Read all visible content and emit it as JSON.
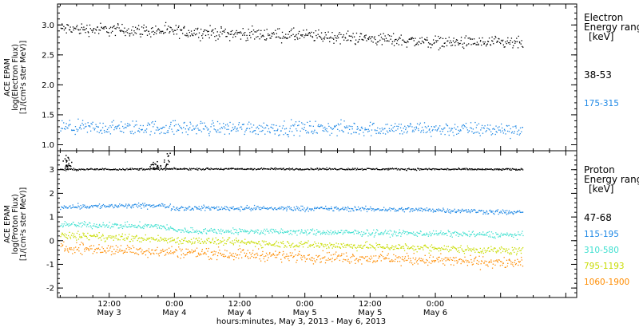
{
  "chart_data": [
    {
      "type": "scatter",
      "panel": "electron",
      "ylabel_lines": [
        "ACE EPAM",
        "log(Electron Flux)",
        "[1/(cm²s ster MeV)]"
      ],
      "ylim": [
        0.9,
        3.35
      ],
      "yticks": [
        1.0,
        1.5,
        2.0,
        2.5,
        3.0
      ],
      "ytick_labels": [
        "1.0",
        "1.5",
        "2.0",
        "2.5",
        "3.0"
      ],
      "legend_title": [
        "Electron",
        "Energy range",
        "[keV]"
      ],
      "series": [
        {
          "name": "38-53",
          "color": "#000000",
          "knots_h": [
            0,
            12,
            24,
            36,
            48,
            60,
            72,
            88
          ],
          "knots_v": [
            2.95,
            2.93,
            2.9,
            2.86,
            2.83,
            2.78,
            2.72,
            2.7
          ],
          "spread": 0.08
        },
        {
          "name": "175-315",
          "color": "#1e88e5",
          "knots_h": [
            0,
            36,
            72,
            88
          ],
          "knots_v": [
            1.29,
            1.29,
            1.27,
            1.26
          ],
          "spread": 0.09
        }
      ]
    },
    {
      "type": "scatter",
      "panel": "proton",
      "ylabel_lines": [
        "ACE EPAM",
        "log(Proton Flux)",
        "[1/(cm²s ster MeV)]"
      ],
      "ylim": [
        -2.4,
        3.8
      ],
      "yticks": [
        -2,
        -1,
        0,
        1,
        2,
        3
      ],
      "ytick_labels": [
        "-2",
        "-1",
        "0",
        "1",
        "2",
        "3"
      ],
      "legend_title": [
        "Proton",
        "Energy range",
        "[keV]"
      ],
      "series": [
        {
          "name": "47-68",
          "color": "#000000",
          "knots_h": [
            0,
            12,
            24,
            48,
            72,
            88
          ],
          "knots_v": [
            3.02,
            3.04,
            3.05,
            3.05,
            3.04,
            3.03
          ],
          "spread": 0.03
        },
        {
          "name": "115-195",
          "color": "#1e88e5",
          "knots_h": [
            0,
            12,
            22,
            24,
            48,
            72,
            88
          ],
          "knots_v": [
            1.45,
            1.48,
            1.5,
            1.4,
            1.38,
            1.32,
            1.2
          ],
          "spread": 0.08
        },
        {
          "name": "310-580",
          "color": "#40e0d0",
          "knots_h": [
            0,
            22,
            24,
            48,
            72,
            88
          ],
          "knots_v": [
            0.72,
            0.62,
            0.45,
            0.38,
            0.32,
            0.25
          ],
          "spread": 0.1
        },
        {
          "name": "795-1193",
          "color": "#c8dc00",
          "knots_h": [
            0,
            24,
            48,
            72,
            88
          ],
          "knots_v": [
            0.28,
            0.05,
            -0.15,
            -0.3,
            -0.42
          ],
          "spread": 0.12
        },
        {
          "name": "1060-1900",
          "color": "#ff8c00",
          "knots_h": [
            0,
            24,
            48,
            72,
            88
          ],
          "knots_v": [
            -0.25,
            -0.45,
            -0.65,
            -0.8,
            -0.95
          ],
          "spread": 0.18
        }
      ]
    }
  ],
  "x_axis": {
    "ticks_h": [
      -24,
      -12,
      0,
      12,
      24,
      36,
      48,
      60,
      72,
      84,
      96,
      108
    ],
    "major_labels": [
      {
        "h": 12,
        "time": "12:00",
        "date": "May 3"
      },
      {
        "h": 24,
        "time": "0:00",
        "date": "May 4"
      },
      {
        "h": 36,
        "time": "12:00",
        "date": "May 4"
      },
      {
        "h": 48,
        "time": "0:00",
        "date": "May 5"
      },
      {
        "h": 60,
        "time": "12:00",
        "date": "May 5"
      },
      {
        "h": 72,
        "time": "0:00",
        "date": "May 6"
      }
    ],
    "range_h": [
      2.5,
      98
    ],
    "data_range_h": [
      3,
      88
    ],
    "xlabel": "hours:minutes, May  3, 2013 - May  6, 2013"
  },
  "proton_spikes": {
    "color": "#000000",
    "events": [
      {
        "h": 3.8,
        "v": 3.55
      },
      {
        "h": 4.2,
        "v": 3.7
      },
      {
        "h": 4.6,
        "v": 3.4
      },
      {
        "h": 19.8,
        "v": 3.25
      },
      {
        "h": 20.4,
        "v": 3.45
      },
      {
        "h": 21.0,
        "v": 3.3
      },
      {
        "h": 22.4,
        "v": 3.55
      },
      {
        "h": 22.9,
        "v": 3.75
      }
    ]
  }
}
